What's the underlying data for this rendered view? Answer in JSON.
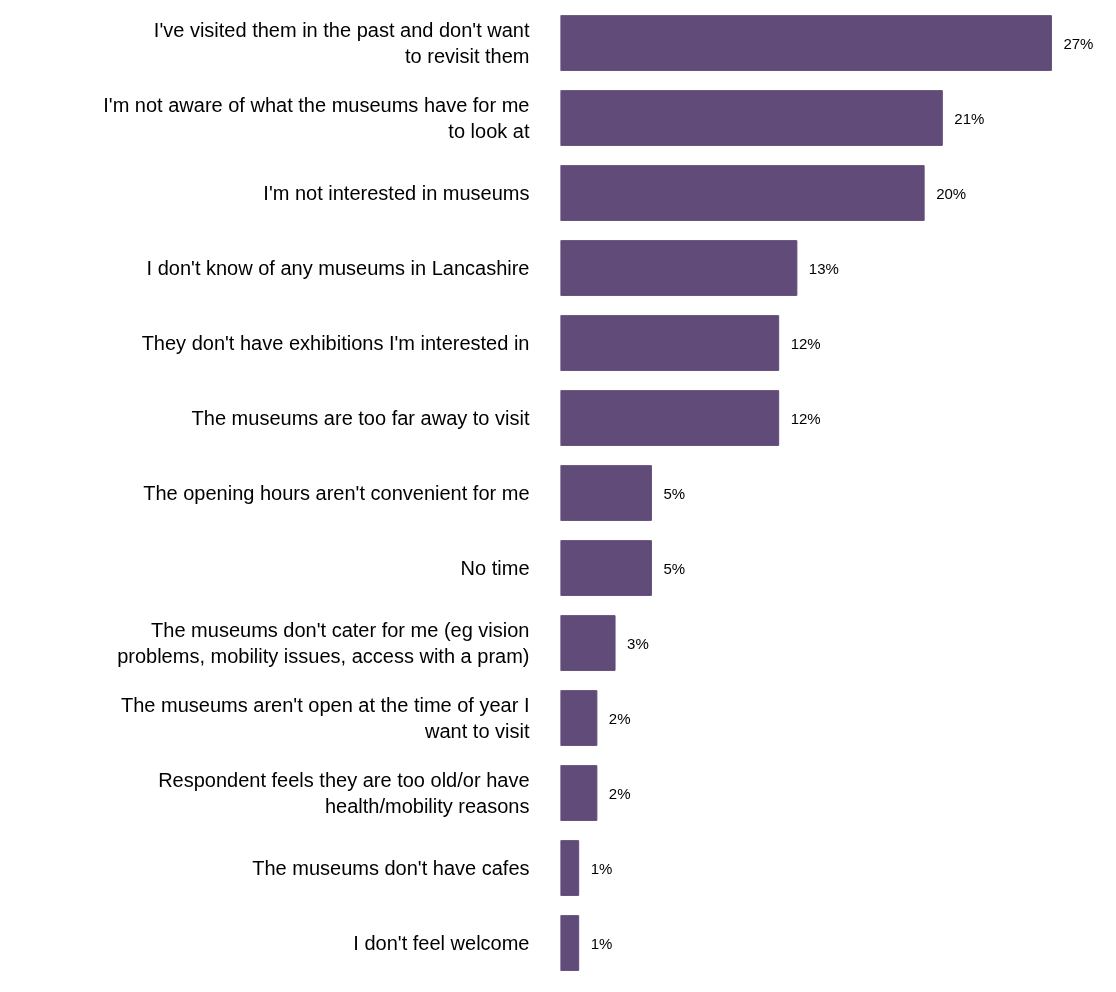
{
  "chart_data": {
    "type": "bar",
    "orientation": "horizontal",
    "color": "#614b79",
    "categories": [
      "I've visited them in the past and don't want to revisit them",
      "I'm not aware of what the museums have for me to look at",
      "I'm not interested in museums",
      "I don't know of any museums in Lancashire",
      "They don't have exhibitions I'm interested in",
      "The museums are too far away to visit",
      "The opening hours aren't convenient for me",
      "No time",
      "The museums don't cater for me (eg vision problems, mobility issues, access with a pram)",
      "The museums aren't open at the time of year I want to visit",
      "Respondent feels they are too old/or have health/mobility reasons",
      "The museums don't have cafes",
      "I don't feel welcome"
    ],
    "values": [
      27,
      21,
      20,
      13,
      12,
      12,
      5,
      5,
      3,
      2,
      2,
      1,
      1
    ],
    "value_labels": [
      "27%",
      "21%",
      "20%",
      "13%",
      "12%",
      "12%",
      "5%",
      "5%",
      "3%",
      "2%",
      "2%",
      "1%",
      "1%"
    ],
    "grid": false
  }
}
